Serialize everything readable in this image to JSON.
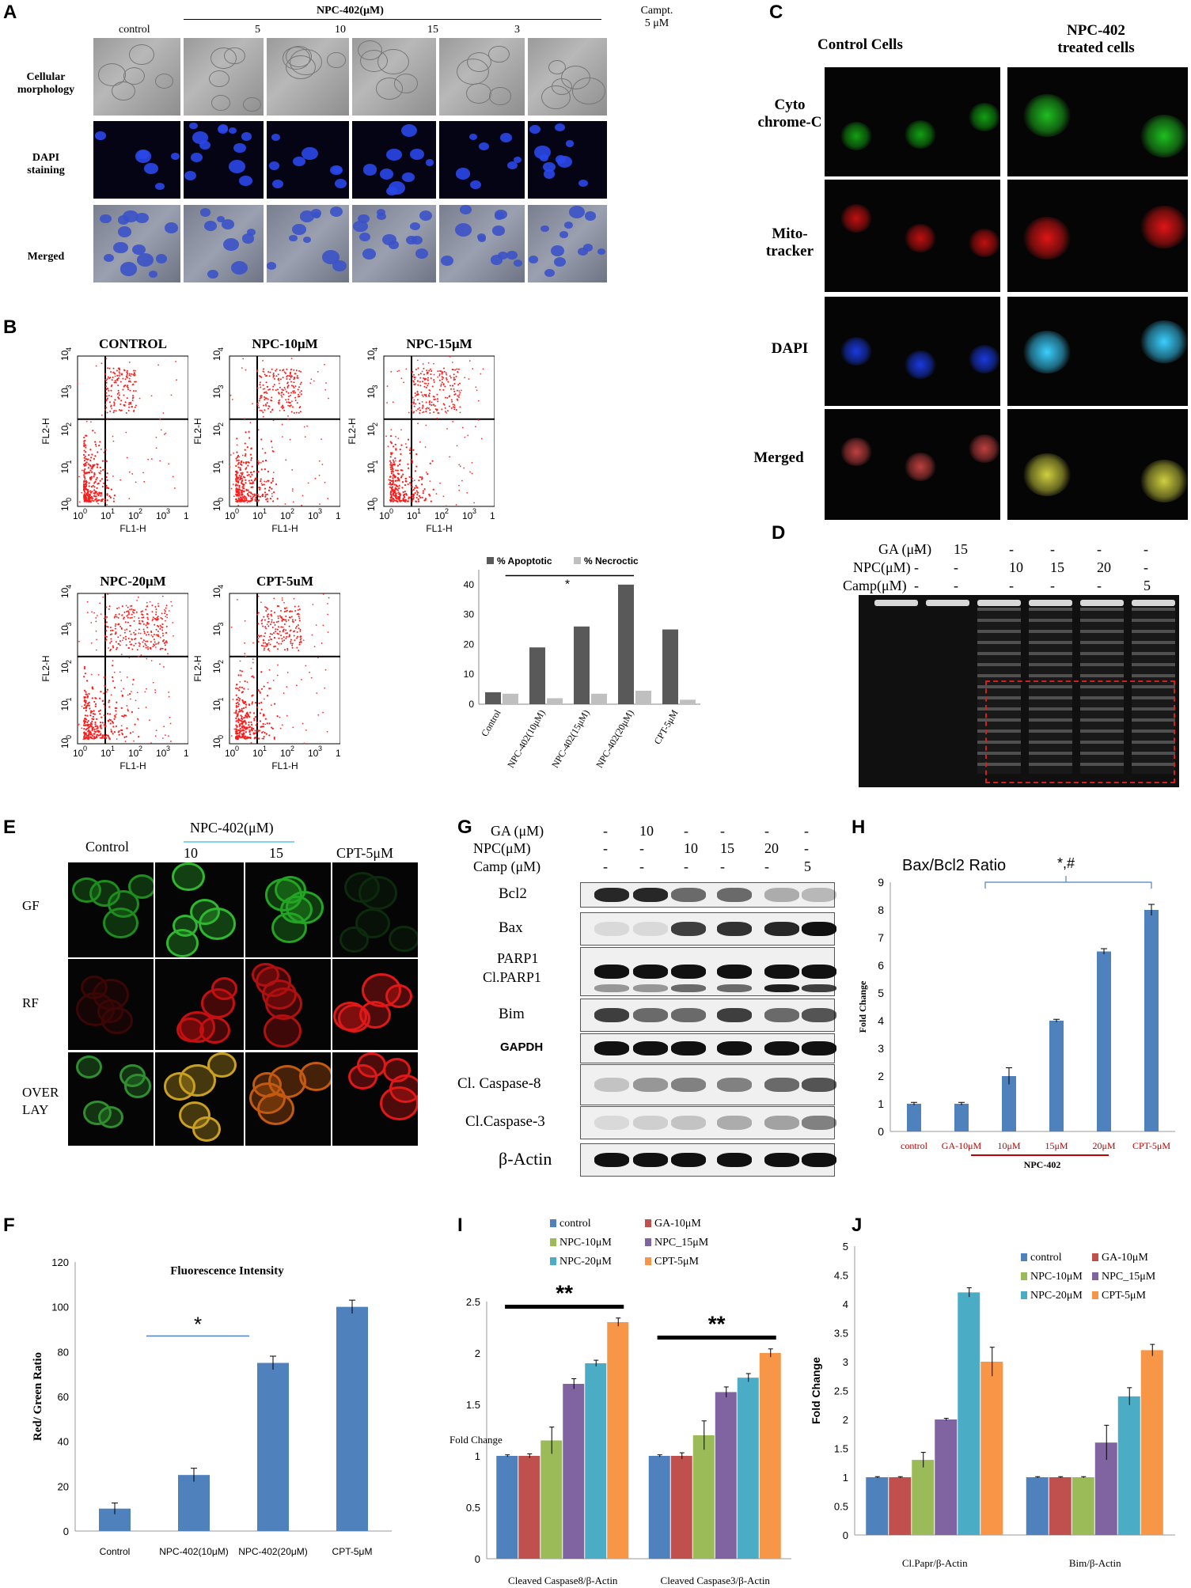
{
  "panelA": {
    "letter": "A",
    "columns": [
      "control",
      "5",
      "10",
      "15",
      "3"
    ],
    "group_label": "NPC-402(μM)",
    "campt_label": [
      "Campt.",
      "5 μM"
    ],
    "rows": [
      [
        "Cellular",
        "morphology"
      ],
      [
        "DAPI",
        "staining"
      ],
      [
        "Merged"
      ]
    ]
  },
  "panelB": {
    "letter": "B",
    "plots": [
      "CONTROL",
      "NPC-10μM",
      "NPC-15μM",
      "NPC-20μM",
      "CPT-5uM"
    ],
    "xlabel": "FL1-H",
    "ylabel": "FL2-H",
    "ticks": [
      "10",
      "10",
      "10",
      "10",
      "10"
    ],
    "tick_exp": [
      "0",
      "1",
      "2",
      "3",
      "4"
    ]
  },
  "panelC": {
    "letter": "C",
    "col_headers": [
      "Control Cells",
      [
        "NPC-402",
        "treated cells"
      ]
    ],
    "rows": [
      [
        "Cyto",
        "chrome-C"
      ],
      [
        "Mito-",
        "tracker"
      ],
      [
        "DAPI"
      ],
      [
        "Merged"
      ]
    ]
  },
  "panelD": {
    "letter": "D",
    "rows": [
      {
        "label": "GA  (μM)",
        "vals": [
          "-",
          "15",
          "-",
          "-",
          "-",
          "-"
        ]
      },
      {
        "label": "NPC(μM)",
        "vals": [
          "-",
          "-",
          "10",
          "15",
          "20",
          "-"
        ]
      },
      {
        "label": "Camp(μM)",
        "vals": [
          "-",
          "-",
          "-",
          "-",
          "-",
          "5"
        ]
      }
    ]
  },
  "panelE": {
    "letter": "E",
    "columns": [
      "Control",
      "10",
      "15",
      "CPT-5μM"
    ],
    "group_label": "NPC-402(μM)",
    "rows": [
      "GF",
      "RF",
      [
        "OVER",
        "LAY"
      ]
    ]
  },
  "panelG": {
    "letter": "G",
    "rows": [
      {
        "label": "GA  (μM)",
        "vals": [
          "-",
          "10",
          "-",
          "-",
          "-",
          "-"
        ]
      },
      {
        "label": "NPC(μM)",
        "vals": [
          "-",
          "-",
          "10",
          "15",
          "20",
          "-"
        ]
      },
      {
        "label": "Camp (μM)",
        "vals": [
          "-",
          "-",
          "-",
          "-",
          "-",
          "5"
        ]
      }
    ],
    "blots": [
      "Bcl2",
      "Bax",
      [
        "PARP1",
        "Cl.PARP1"
      ],
      "Bim",
      "GAPDH",
      "Cl. Caspase-8",
      "Cl.Caspase-3",
      "β-Actin"
    ]
  },
  "panelH": {
    "letter": "H",
    "group_label": "NPC-402",
    "sig": "*,#"
  },
  "panelF": {
    "letter": "F",
    "sig": "*"
  },
  "panelI": {
    "letter": "I",
    "sig": [
      "**",
      "**"
    ]
  },
  "panelJ": {
    "letter": "J"
  },
  "chart_data": [
    {
      "id": "B-bar",
      "type": "bar",
      "categories": [
        "Control",
        "NPC-402(10μM)",
        "NPC-402(15μM)",
        "NPC-402(20μM)",
        "CPT-5μM"
      ],
      "series": [
        {
          "name": "% Apoptotic",
          "values": [
            4,
            19,
            26,
            40,
            25
          ],
          "color": "#595959"
        },
        {
          "name": "% Necroctic",
          "values": [
            3.5,
            2,
            3.5,
            4.5,
            1.5
          ],
          "color": "#bfbfbf"
        }
      ],
      "ylim": [
        0,
        45
      ],
      "yticks": [
        0,
        10,
        20,
        30,
        40
      ],
      "annotation": "*"
    },
    {
      "id": "H",
      "type": "bar",
      "title": "Bax/Bcl2 Ratio",
      "ylabel": "Fold Change",
      "categories": [
        "control",
        "GA-10μM",
        "10μM",
        "15μM",
        "20μM",
        "CPT-5μM"
      ],
      "values": [
        1,
        1,
        2,
        4,
        6.5,
        8
      ],
      "errors": [
        0.05,
        0.05,
        0.3,
        0.05,
        0.1,
        0.2
      ],
      "ylim": [
        0,
        9
      ],
      "yticks": [
        0,
        1,
        2,
        3,
        4,
        5,
        6,
        7,
        8,
        9
      ],
      "color": "#4f81bd"
    },
    {
      "id": "F",
      "type": "bar",
      "title": "Fluorescence Intensity",
      "ylabel": "Red/ Green Ratio",
      "categories": [
        "Control",
        "NPC-402(10μM)",
        "NPC-402(20μM)",
        "CPT-5μM"
      ],
      "values": [
        10,
        25,
        75,
        100
      ],
      "errors": [
        2.5,
        3,
        3,
        3
      ],
      "ylim": [
        0,
        120
      ],
      "yticks": [
        0,
        20,
        40,
        60,
        80,
        100,
        120
      ],
      "color": "#4f81bd"
    },
    {
      "id": "I",
      "type": "bar",
      "ylabel": "Fold Change",
      "categories": [
        "Cleaved Caspase8/β-Actin",
        "Cleaved Caspase3/β-Actin"
      ],
      "series": [
        {
          "name": "control",
          "values": [
            1,
            1
          ],
          "errors": [
            0.01,
            0.01
          ],
          "color": "#4f81bd"
        },
        {
          "name": "GA-10μM",
          "values": [
            1,
            1
          ],
          "errors": [
            0.02,
            0.03
          ],
          "color": "#c0504d"
        },
        {
          "name": "NPC-10μM",
          "values": [
            1.15,
            1.2
          ],
          "errors": [
            0.13,
            0.14
          ],
          "color": "#9bbb59"
        },
        {
          "name": "NPC_15μM",
          "values": [
            1.7,
            1.62
          ],
          "errors": [
            0.05,
            0.05
          ],
          "color": "#8064a2"
        },
        {
          "name": "NPC-20μM",
          "values": [
            1.9,
            1.76
          ],
          "errors": [
            0.03,
            0.04
          ],
          "color": "#4bacc6"
        },
        {
          "name": "CPT-5μM",
          "values": [
            2.3,
            2.0
          ],
          "errors": [
            0.04,
            0.04
          ],
          "color": "#f79646"
        }
      ],
      "ylim": [
        0,
        2.5
      ],
      "yticks": [
        0,
        0.5,
        1,
        1.5,
        2,
        2.5
      ]
    },
    {
      "id": "J",
      "type": "bar",
      "ylabel": "Fold Change",
      "categories": [
        "Cl.Papr/β-Actin",
        "Bim/β-Actin"
      ],
      "series": [
        {
          "name": "control",
          "values": [
            1,
            1
          ],
          "errors": [
            0.01,
            0.01
          ],
          "color": "#4f81bd"
        },
        {
          "name": "GA-10μM",
          "values": [
            1,
            1
          ],
          "errors": [
            0.01,
            0.01
          ],
          "color": "#c0504d"
        },
        {
          "name": "NPC-10μM",
          "values": [
            1.3,
            1
          ],
          "errors": [
            0.13,
            0.01
          ],
          "color": "#9bbb59"
        },
        {
          "name": "NPC_15μM",
          "values": [
            2,
            1.6
          ],
          "errors": [
            0.02,
            0.3
          ],
          "color": "#8064a2"
        },
        {
          "name": "NPC-20μM",
          "values": [
            4.2,
            2.4
          ],
          "errors": [
            0.08,
            0.15
          ],
          "color": "#4bacc6"
        },
        {
          "name": "CPT-5μM",
          "values": [
            3,
            3.2
          ],
          "errors": [
            0.25,
            0.1
          ],
          "color": "#f79646"
        }
      ],
      "ylim": [
        0,
        5
      ],
      "yticks": [
        0,
        0.5,
        1,
        1.5,
        2,
        2.5,
        3,
        3.5,
        4,
        4.5,
        5
      ]
    }
  ]
}
